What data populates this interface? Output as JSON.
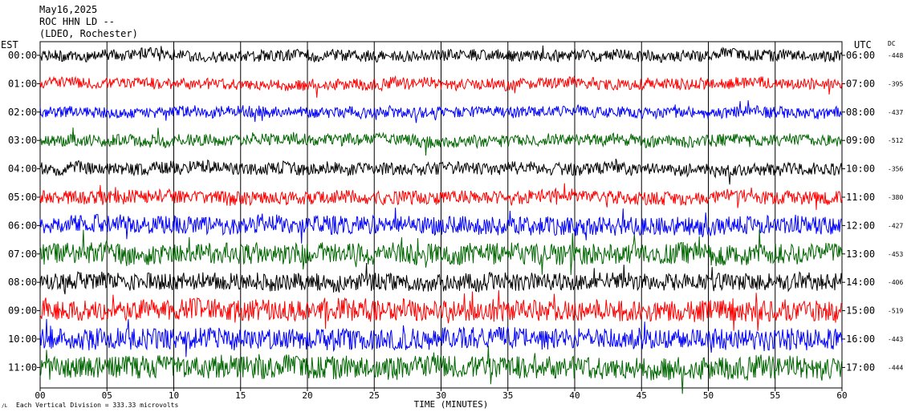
{
  "header": {
    "date": "May16,2025",
    "station": "ROC HHN LD --",
    "network": "(LDEO, Rochester)"
  },
  "footer": {
    "scale_note": "Each Vertical Division = 333.33 microvolts",
    "corner_mark": "/L"
  },
  "colors": {
    "black": "#000000",
    "red": "#ff0000",
    "blue": "#0000ff",
    "green": "#006600",
    "grid": "#000000"
  },
  "chart_data": {
    "type": "line",
    "title": "May16,2025 ROC HHN LD -- (LDEO, Rochester)",
    "xlabel": "TIME (MINUTES)",
    "xlim": [
      0,
      60
    ],
    "x_ticks": [
      "00",
      "05",
      "10",
      "15",
      "20",
      "25",
      "30",
      "35",
      "40",
      "45",
      "50",
      "55",
      "60"
    ],
    "left_axis_title": "EST",
    "right_axis_title": "UTC",
    "dc_title": "DC",
    "grid": "vertical lines every 5 minutes",
    "rows": [
      {
        "est": "00:00",
        "utc": "06:00",
        "dc": "-448",
        "color": "black",
        "noise": 0.35
      },
      {
        "est": "01:00",
        "utc": "07:00",
        "dc": "-395",
        "color": "red",
        "noise": 0.35
      },
      {
        "est": "02:00",
        "utc": "08:00",
        "dc": "-437",
        "color": "blue",
        "noise": 0.35
      },
      {
        "est": "03:00",
        "utc": "09:00",
        "dc": "-512",
        "color": "green",
        "noise": 0.4
      },
      {
        "est": "04:00",
        "utc": "10:00",
        "dc": "-356",
        "color": "black",
        "noise": 0.45
      },
      {
        "est": "05:00",
        "utc": "11:00",
        "dc": "-380",
        "color": "red",
        "noise": 0.5
      },
      {
        "est": "06:00",
        "utc": "12:00",
        "dc": "-427",
        "color": "blue",
        "noise": 0.8
      },
      {
        "est": "07:00",
        "utc": "13:00",
        "dc": "-453",
        "color": "green",
        "noise": 1.0
      },
      {
        "est": "08:00",
        "utc": "14:00",
        "dc": "-406",
        "color": "black",
        "noise": 0.75
      },
      {
        "est": "09:00",
        "utc": "15:00",
        "dc": "-519",
        "color": "red",
        "noise": 1.0
      },
      {
        "est": "10:00",
        "utc": "16:00",
        "dc": "-443",
        "color": "blue",
        "noise": 1.0
      },
      {
        "est": "11:00",
        "utc": "17:00",
        "dc": "-444",
        "color": "green",
        "noise": 1.1
      }
    ]
  }
}
